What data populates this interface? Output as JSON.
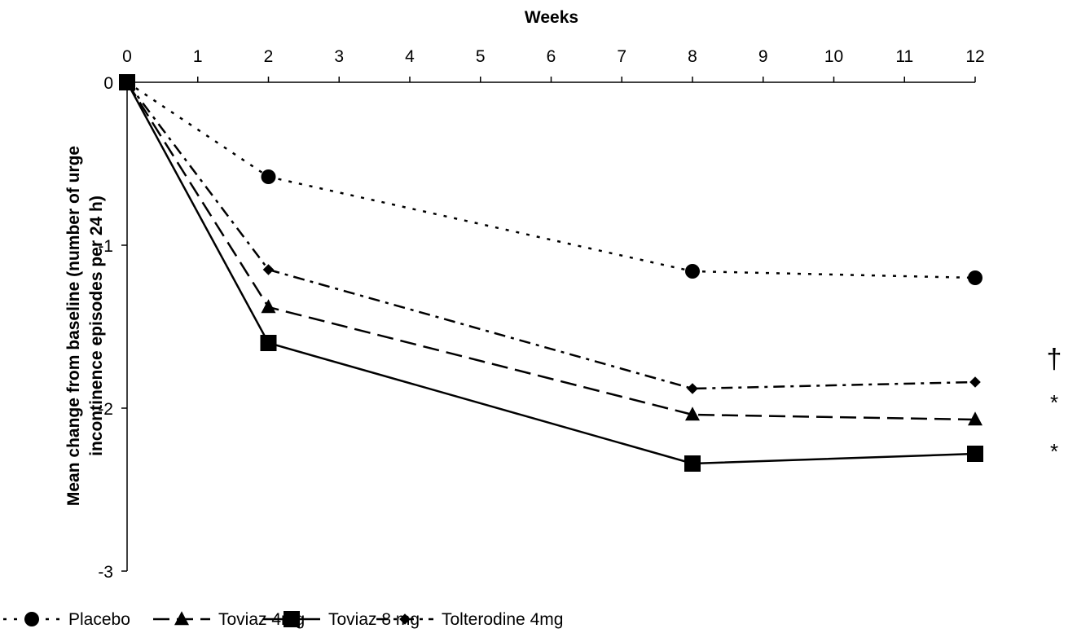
{
  "chart_data": {
    "type": "line",
    "xlabel": "Weeks",
    "ylabel_lines": [
      "Mean change from baseline (number of urge",
      "incontinence episodes per 24 h)"
    ],
    "x_ticks": [
      0,
      1,
      2,
      3,
      4,
      5,
      6,
      7,
      8,
      9,
      10,
      11,
      12
    ],
    "y_ticks": [
      0,
      -1,
      -2,
      -3
    ],
    "xlim": [
      0,
      12
    ],
    "ylim": [
      -3,
      0
    ],
    "x_axis_position": "top",
    "grid": false,
    "legend_position": "bottom",
    "series": [
      {
        "name": "Placebo",
        "x": [
          0,
          2,
          8,
          12
        ],
        "y": [
          0,
          -0.58,
          -1.16,
          -1.2
        ],
        "marker": "circle",
        "dash": "dotted",
        "color": "#000000"
      },
      {
        "name": "Toviaz 4mg",
        "x": [
          0,
          2,
          8,
          12
        ],
        "y": [
          0,
          -1.38,
          -2.04,
          -2.07
        ],
        "marker": "triangle",
        "dash": "dashed",
        "color": "#000000"
      },
      {
        "name": "Toviaz 8 mg",
        "x": [
          0,
          2,
          8,
          12
        ],
        "y": [
          0,
          -1.6,
          -2.34,
          -2.28
        ],
        "marker": "square",
        "dash": "solid",
        "color": "#000000"
      },
      {
        "name": "Tolterodine 4mg",
        "x": [
          0,
          2,
          8,
          12
        ],
        "y": [
          0,
          -1.15,
          -1.88,
          -1.84
        ],
        "marker": "diamond",
        "dash": "dash-dot",
        "color": "#000000"
      }
    ],
    "annotations": [
      "†",
      "*",
      "*"
    ]
  }
}
